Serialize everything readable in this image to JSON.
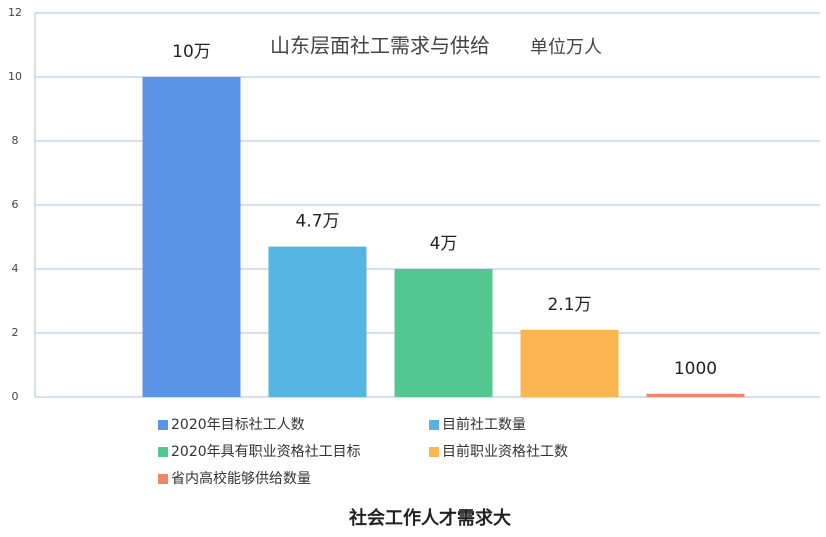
{
  "chart_data": {
    "type": "bar",
    "title": "山东层面社工需求与供给",
    "subtitle": "单位万人",
    "categories": [
      null
    ],
    "series": [
      {
        "name": "2020年目标社工人数",
        "color": "#5b93e6",
        "values": [
          10
        ],
        "value_labels": [
          "10万"
        ]
      },
      {
        "name": "目前社工数量",
        "color": "#56b4e3",
        "values": [
          4.7
        ],
        "value_labels": [
          "4.7万"
        ]
      },
      {
        "name": "2020年具有职业资格社工目标",
        "color": "#52c78f",
        "values": [
          4
        ],
        "value_labels": [
          "4万"
        ]
      },
      {
        "name": "目前职业资格社工数",
        "color": "#fbb652",
        "values": [
          2.1
        ],
        "value_labels": [
          "2.1万"
        ]
      },
      {
        "name": "省内高校能够供给数量",
        "color": "#f1856b",
        "values": [
          0.1
        ],
        "value_labels": [
          "1000"
        ]
      }
    ],
    "ylim": [
      0,
      12
    ],
    "yticks": [
      0,
      2,
      4,
      6,
      8,
      10,
      12
    ],
    "grid": true
  },
  "caption": "社会工作人才需求大"
}
